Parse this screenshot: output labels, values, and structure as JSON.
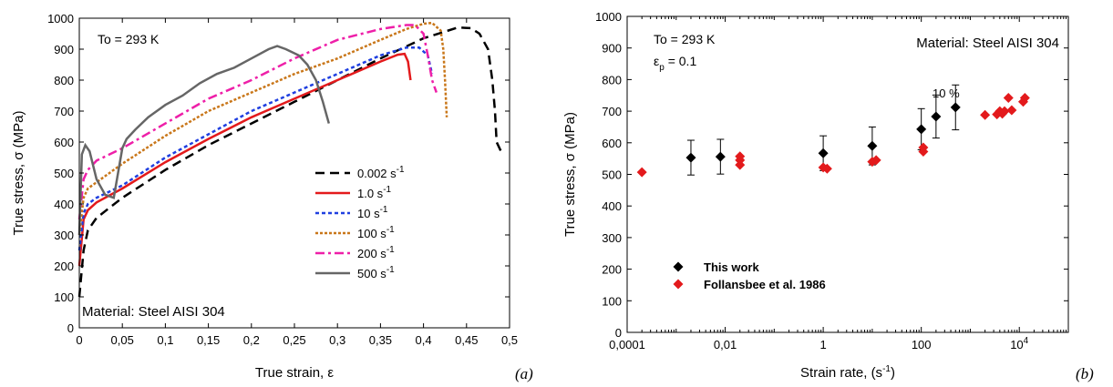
{
  "chart_data": [
    {
      "type": "line",
      "panel_label": "(a)",
      "xlabel": "True strain, ε",
      "ylabel": "True stress, σ (MPa)",
      "xlim": [
        0,
        0.5
      ],
      "ylim": [
        0,
        1000
      ],
      "xticks": [
        "0",
        "0,05",
        "0,1",
        "0,15",
        "0,2",
        "0,25",
        "0,3",
        "0,35",
        "0,4",
        "0,45",
        "0,5"
      ],
      "yticks": [
        "0",
        "100",
        "200",
        "300",
        "400",
        "500",
        "600",
        "700",
        "800",
        "900",
        "1000"
      ],
      "grid": false,
      "legend_position": "center-right",
      "annotations": [
        "To = 293 K",
        "Material: Steel AISI 304"
      ],
      "series": [
        {
          "name": "0.002 s",
          "name_sup": "-1",
          "color": "#000000",
          "dash": "10,6",
          "width": 2.5,
          "x": [
            0.0,
            0.005,
            0.01,
            0.02,
            0.05,
            0.1,
            0.15,
            0.2,
            0.25,
            0.3,
            0.35,
            0.4,
            0.44,
            0.455,
            0.465,
            0.475,
            0.48,
            0.483,
            0.485,
            0.49
          ],
          "y": [
            100,
            250,
            315,
            355,
            420,
            510,
            590,
            660,
            730,
            800,
            870,
            935,
            970,
            968,
            950,
            900,
            800,
            700,
            600,
            570
          ]
        },
        {
          "name": "1.0 s",
          "name_sup": "-1",
          "color": "#e31a1c",
          "dash": "",
          "width": 2.5,
          "x": [
            0.0,
            0.005,
            0.01,
            0.02,
            0.05,
            0.1,
            0.15,
            0.2,
            0.25,
            0.3,
            0.35,
            0.37,
            0.378,
            0.382,
            0.385
          ],
          "y": [
            200,
            350,
            380,
            405,
            450,
            535,
            610,
            680,
            740,
            800,
            860,
            882,
            885,
            860,
            800
          ]
        },
        {
          "name": "10 s",
          "name_sup": "-1",
          "color": "#1f3fe0",
          "dash": "4,3",
          "width": 2.5,
          "x": [
            0.0,
            0.005,
            0.01,
            0.02,
            0.05,
            0.1,
            0.15,
            0.2,
            0.25,
            0.3,
            0.35,
            0.38,
            0.395,
            0.405,
            0.41
          ],
          "y": [
            250,
            370,
            400,
            420,
            460,
            550,
            625,
            700,
            760,
            820,
            880,
            905,
            905,
            880,
            820
          ]
        },
        {
          "name": "100 s",
          "name_sup": "-1",
          "color": "#c9771a",
          "dash": "3,2",
          "width": 2.5,
          "x": [
            0.0,
            0.005,
            0.01,
            0.02,
            0.05,
            0.1,
            0.15,
            0.2,
            0.25,
            0.3,
            0.35,
            0.38,
            0.4,
            0.41,
            0.42,
            0.423,
            0.425,
            0.427
          ],
          "y": [
            300,
            420,
            450,
            470,
            530,
            620,
            700,
            760,
            820,
            870,
            930,
            965,
            982,
            985,
            960,
            900,
            800,
            680
          ]
        },
        {
          "name": "200 s",
          "name_sup": "-1",
          "color": "#ee1fa8",
          "dash": "10,4,3,4",
          "width": 2.5,
          "x": [
            0.0,
            0.005,
            0.01,
            0.02,
            0.05,
            0.1,
            0.15,
            0.2,
            0.25,
            0.3,
            0.35,
            0.38,
            0.39,
            0.4,
            0.405,
            0.41,
            0.415
          ],
          "y": [
            350,
            480,
            510,
            540,
            580,
            660,
            740,
            800,
            870,
            930,
            965,
            978,
            978,
            950,
            880,
            800,
            760
          ]
        },
        {
          "name": "500 s",
          "name_sup": "-1",
          "color": "#666666",
          "dash": "",
          "width": 2.5,
          "x": [
            0.0,
            0.003,
            0.007,
            0.012,
            0.02,
            0.03,
            0.04,
            0.045,
            0.05,
            0.055,
            0.065,
            0.08,
            0.1,
            0.12,
            0.14,
            0.16,
            0.18,
            0.2,
            0.22,
            0.23,
            0.24,
            0.255,
            0.265,
            0.275,
            0.283,
            0.288,
            0.29
          ],
          "y": [
            300,
            560,
            590,
            570,
            480,
            430,
            420,
            500,
            580,
            610,
            640,
            680,
            720,
            750,
            790,
            820,
            840,
            870,
            900,
            910,
            900,
            880,
            850,
            800,
            730,
            680,
            660
          ]
        }
      ]
    },
    {
      "type": "scatter",
      "panel_label": "(b)",
      "xlabel": "Strain rate, (s",
      "xlabel_sup": "-1",
      "xlabel_end": ")",
      "ylabel": "True stress, σ (MPa)",
      "xscale": "log",
      "xlim": [
        0.0001,
        100000
      ],
      "ylim": [
        0,
        1000
      ],
      "xticks": [
        "0,0001",
        "0,01",
        "1",
        "100",
        "10"
      ],
      "xtick_last_sup": "4",
      "yticks": [
        "0",
        "100",
        "200",
        "300",
        "400",
        "500",
        "600",
        "700",
        "800",
        "900",
        "1000"
      ],
      "grid": false,
      "legend_position": "bottom-left",
      "annotations": {
        "temperature": "To = 293 K",
        "strain_base": "ε",
        "strain_sub": "p",
        "strain_value": " = 0.1",
        "material": "Material: Steel AISI 304",
        "error_note": "10 %"
      },
      "series": [
        {
          "name": "This work",
          "color": "#000000",
          "x": [
            0.002,
            0.008,
            1.0,
            10,
            100,
            200,
            500
          ],
          "y": [
            553,
            556,
            567,
            590,
            643,
            683,
            712
          ],
          "error": [
            55,
            55,
            55,
            60,
            65,
            68,
            71
          ]
        },
        {
          "name": "Follansbee et al. 1986",
          "color": "#e31a1c",
          "x": [
            0.0002,
            0.02,
            0.02,
            0.02,
            1.0,
            1.2,
            10,
            12,
            110,
            110,
            2000,
            3500,
            4000,
            4500,
            6000,
            5000,
            7000,
            12000,
            13000
          ],
          "y": [
            507,
            530,
            545,
            557,
            522,
            518,
            540,
            545,
            572,
            585,
            688,
            690,
            700,
            692,
            742,
            700,
            703,
            730,
            742
          ]
        }
      ]
    }
  ]
}
